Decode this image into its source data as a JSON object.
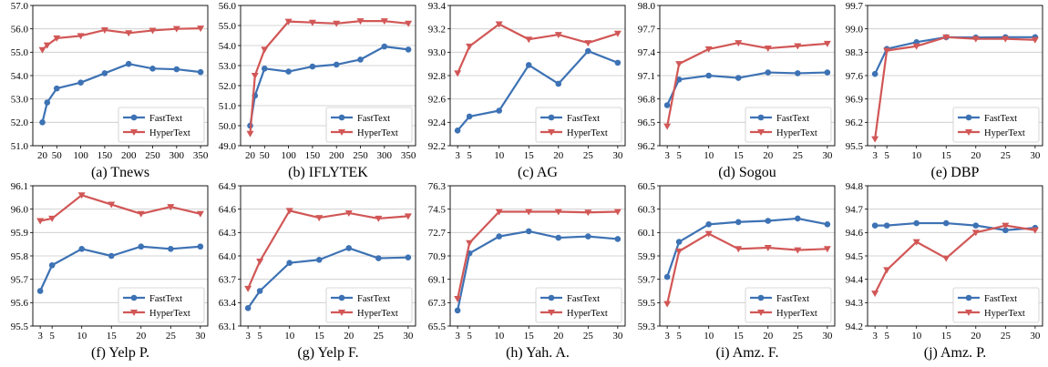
{
  "colors": {
    "fasttext": "#3d72b4",
    "hypertext": "#d15756",
    "grid": "#c8c8c8"
  },
  "legend": {
    "placement": "lower-right"
  },
  "chart_data": [
    {
      "type": "line",
      "caption": "(a) Tnews",
      "x": [
        20,
        30,
        50,
        100,
        150,
        200,
        250,
        300,
        350
      ],
      "xticks": [
        20,
        50,
        100,
        150,
        200,
        250,
        300,
        350
      ],
      "xlim": [
        0,
        365
      ],
      "ylim": [
        51.0,
        57.0
      ],
      "yticks": [
        "51.0",
        "52.0",
        "53.0",
        "54.0",
        "55.0",
        "56.0",
        "57.0"
      ],
      "series": [
        {
          "name": "FastText",
          "values": [
            52.0,
            52.85,
            53.45,
            53.7,
            54.1,
            54.5,
            54.3,
            54.27,
            54.15
          ]
        },
        {
          "name": "HyperText",
          "values": [
            55.1,
            55.3,
            55.6,
            55.7,
            55.95,
            55.82,
            55.93,
            56.0,
            56.02
          ]
        }
      ]
    },
    {
      "type": "line",
      "caption": "(b) IFLYTEK",
      "x": [
        20,
        30,
        50,
        100,
        150,
        200,
        250,
        300,
        350
      ],
      "xticks": [
        20,
        50,
        100,
        150,
        200,
        250,
        300,
        350
      ],
      "xlim": [
        0,
        365
      ],
      "ylim": [
        49.0,
        56.0
      ],
      "yticks": [
        "49.0",
        "50.0",
        "51.0",
        "52.0",
        "53.0",
        "54.0",
        "55.0",
        "56.0"
      ],
      "series": [
        {
          "name": "FastText",
          "values": [
            50.0,
            51.5,
            52.85,
            52.7,
            52.95,
            53.05,
            53.3,
            53.95,
            53.8
          ]
        },
        {
          "name": "HyperText",
          "values": [
            49.6,
            52.5,
            53.8,
            55.2,
            55.15,
            55.1,
            55.22,
            55.22,
            55.1
          ]
        }
      ]
    },
    {
      "type": "line",
      "caption": "(c) AG",
      "x": [
        3,
        5,
        10,
        15,
        20,
        25,
        30
      ],
      "xticks": [
        3,
        5,
        10,
        15,
        20,
        25,
        30
      ],
      "xlim": [
        1.75,
        31.25
      ],
      "ylim": [
        92.2,
        93.4
      ],
      "yticks": [
        "92.2",
        "92.4",
        "92.6",
        "92.8",
        "93.0",
        "93.2",
        "93.4"
      ],
      "series": [
        {
          "name": "FastText",
          "values": [
            92.33,
            92.45,
            92.5,
            92.89,
            92.73,
            93.01,
            92.91
          ]
        },
        {
          "name": "HyperText",
          "values": [
            92.82,
            93.05,
            93.24,
            93.11,
            93.15,
            93.08,
            93.16
          ]
        }
      ]
    },
    {
      "type": "line",
      "caption": "(d) Sogou",
      "x": [
        3,
        5,
        10,
        15,
        20,
        25,
        30
      ],
      "xticks": [
        3,
        5,
        10,
        15,
        20,
        25,
        30
      ],
      "xlim": [
        1.75,
        31.25
      ],
      "ylim": [
        96.2,
        98.0
      ],
      "yticks": [
        "96.2",
        "96.5",
        "96.8",
        "97.1",
        "97.4",
        "97.7",
        "98.0"
      ],
      "series": [
        {
          "name": "FastText",
          "values": [
            96.72,
            97.05,
            97.1,
            97.07,
            97.14,
            97.13,
            97.14
          ]
        },
        {
          "name": "HyperText",
          "values": [
            96.45,
            97.25,
            97.44,
            97.52,
            97.45,
            97.48,
            97.51
          ]
        }
      ]
    },
    {
      "type": "line",
      "caption": "(e) DBP",
      "x": [
        3,
        5,
        10,
        15,
        20,
        25,
        30
      ],
      "xticks": [
        3,
        5,
        10,
        15,
        20,
        25,
        30
      ],
      "xlim": [
        1.75,
        31.25
      ],
      "ylim": [
        95.5,
        99.7
      ],
      "yticks": [
        "95.5",
        "96.2",
        "96.9",
        "97.6",
        "98.3",
        "99.0",
        "99.7"
      ],
      "series": [
        {
          "name": "FastText",
          "values": [
            97.65,
            98.4,
            98.6,
            98.75,
            98.74,
            98.75,
            98.75
          ]
        },
        {
          "name": "HyperText",
          "values": [
            95.7,
            98.35,
            98.48,
            98.75,
            98.7,
            98.7,
            98.67
          ]
        }
      ]
    },
    {
      "type": "line",
      "caption": "(f) Yelp P.",
      "x": [
        3,
        5,
        10,
        15,
        20,
        25,
        30
      ],
      "xticks": [
        3,
        5,
        10,
        15,
        20,
        25,
        30
      ],
      "xlim": [
        1.75,
        31.25
      ],
      "ylim": [
        95.5,
        96.1
      ],
      "yticks": [
        "95.5",
        "95.6",
        "95.7",
        "95.8",
        "95.9",
        "96.0",
        "96.1"
      ],
      "series": [
        {
          "name": "FastText",
          "values": [
            95.65,
            95.76,
            95.83,
            95.8,
            95.84,
            95.83,
            95.84
          ]
        },
        {
          "name": "HyperText",
          "values": [
            95.95,
            95.96,
            96.06,
            96.02,
            95.98,
            96.01,
            95.98
          ]
        }
      ]
    },
    {
      "type": "line",
      "caption": "(g) Yelp F.",
      "x": [
        3,
        5,
        10,
        15,
        20,
        25,
        30
      ],
      "xticks": [
        3,
        5,
        10,
        15,
        20,
        25,
        30
      ],
      "xlim": [
        1.75,
        31.25
      ],
      "ylim": [
        63.1,
        64.9
      ],
      "yticks": [
        "63.1",
        "63.4",
        "63.7",
        "64.0",
        "64.3",
        "64.6",
        "64.9"
      ],
      "series": [
        {
          "name": "FastText",
          "values": [
            63.33,
            63.55,
            63.91,
            63.95,
            64.1,
            63.97,
            63.98
          ]
        },
        {
          "name": "HyperText",
          "values": [
            63.58,
            63.93,
            64.58,
            64.49,
            64.55,
            64.48,
            64.51
          ]
        }
      ]
    },
    {
      "type": "line",
      "caption": "(h) Yah. A.",
      "x": [
        3,
        5,
        10,
        15,
        20,
        25,
        30
      ],
      "xticks": [
        3,
        5,
        10,
        15,
        20,
        25,
        30
      ],
      "xlim": [
        1.75,
        31.25
      ],
      "ylim": [
        65.5,
        76.3
      ],
      "yticks": [
        "65.5",
        "67.3",
        "69.1",
        "70.9",
        "72.7",
        "74.5",
        "76.3"
      ],
      "series": [
        {
          "name": "FastText",
          "values": [
            66.7,
            71.1,
            72.4,
            72.8,
            72.3,
            72.4,
            72.2
          ]
        },
        {
          "name": "HyperText",
          "values": [
            67.6,
            71.9,
            74.3,
            74.3,
            74.3,
            74.25,
            74.3
          ]
        }
      ]
    },
    {
      "type": "line",
      "caption": "(i) Amz. F.",
      "x": [
        3,
        5,
        10,
        15,
        20,
        25,
        30
      ],
      "xticks": [
        3,
        5,
        10,
        15,
        20,
        25,
        30
      ],
      "xlim": [
        1.75,
        31.25
      ],
      "ylim": [
        59.3,
        60.5
      ],
      "yticks": [
        "59.3",
        "59.5",
        "59.7",
        "59.9",
        "60.1",
        "60.3",
        "60.5"
      ],
      "series": [
        {
          "name": "FastText",
          "values": [
            59.72,
            60.02,
            60.17,
            60.19,
            60.2,
            60.22,
            60.17
          ]
        },
        {
          "name": "HyperText",
          "values": [
            59.49,
            59.94,
            60.09,
            59.96,
            59.97,
            59.95,
            59.96
          ]
        }
      ]
    },
    {
      "type": "line",
      "caption": "(j) Amz. P.",
      "x": [
        3,
        5,
        10,
        15,
        20,
        25,
        30
      ],
      "xticks": [
        3,
        5,
        10,
        15,
        20,
        25,
        30
      ],
      "xlim": [
        1.75,
        31.25
      ],
      "ylim": [
        94.2,
        94.8
      ],
      "yticks": [
        "94.2",
        "94.3",
        "94.4",
        "94.5",
        "94.6",
        "94.7",
        "94.8"
      ],
      "series": [
        {
          "name": "FastText",
          "values": [
            94.63,
            94.63,
            94.64,
            94.64,
            94.63,
            94.61,
            94.62
          ]
        },
        {
          "name": "HyperText",
          "values": [
            94.34,
            94.44,
            94.56,
            94.49,
            94.6,
            94.63,
            94.61
          ]
        }
      ]
    }
  ]
}
